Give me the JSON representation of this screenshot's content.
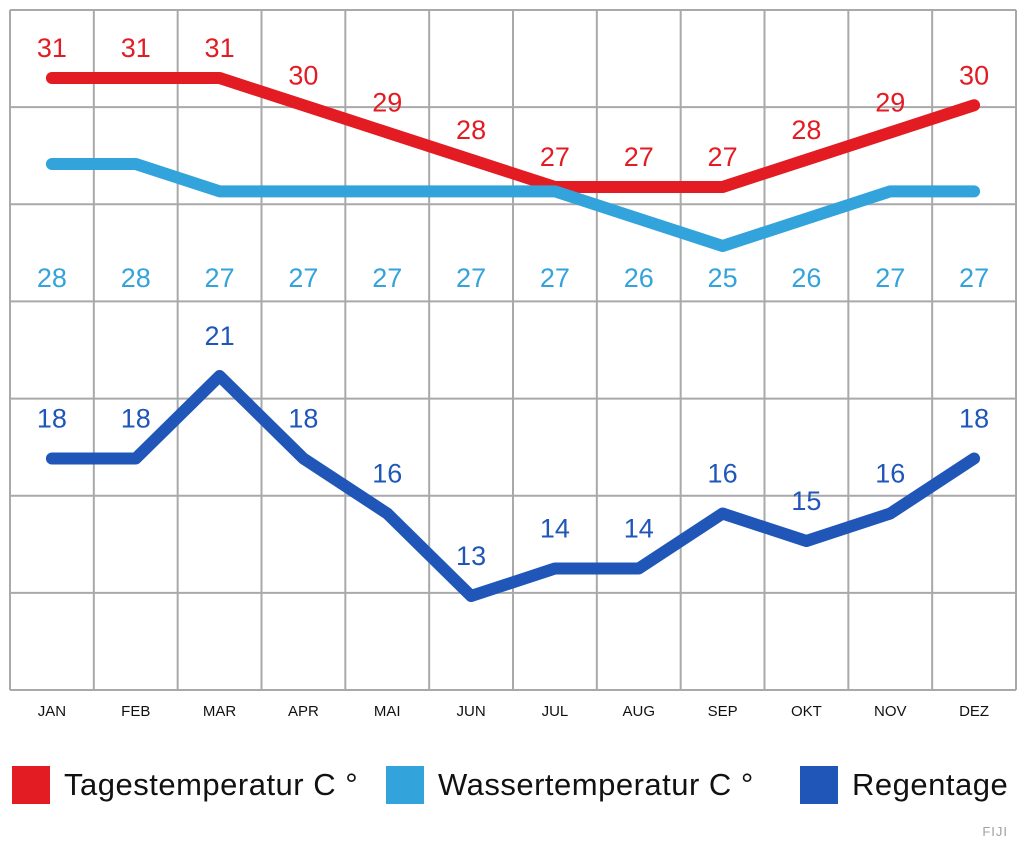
{
  "chart_data": {
    "type": "line",
    "categories": [
      "JAN",
      "FEB",
      "MAR",
      "APR",
      "MAI",
      "JUN",
      "JUL",
      "AUG",
      "SEP",
      "OKT",
      "NOV",
      "DEZ"
    ],
    "series": [
      {
        "name": "Tagestemperatur C °",
        "color": "#e31b23",
        "values": [
          31,
          31,
          31,
          30,
          29,
          28,
          27,
          27,
          27,
          28,
          29,
          30
        ]
      },
      {
        "name": "Wassertemperatur C °",
        "color": "#33a3dc",
        "values": [
          28,
          28,
          27,
          27,
          27,
          27,
          27,
          26,
          25,
          26,
          27,
          27
        ]
      },
      {
        "name": "Regentage",
        "color": "#1f56b8",
        "values": [
          18,
          18,
          21,
          18,
          16,
          13,
          14,
          14,
          16,
          15,
          16,
          18
        ]
      }
    ],
    "grid": true
  },
  "legend": [
    {
      "label": "Tagestemperatur C °",
      "color": "#e31b23"
    },
    {
      "label": "Wassertemperatur C °",
      "color": "#33a3dc"
    },
    {
      "label": "Regentage",
      "color": "#1f56b8"
    }
  ],
  "watermark": "FIJI"
}
